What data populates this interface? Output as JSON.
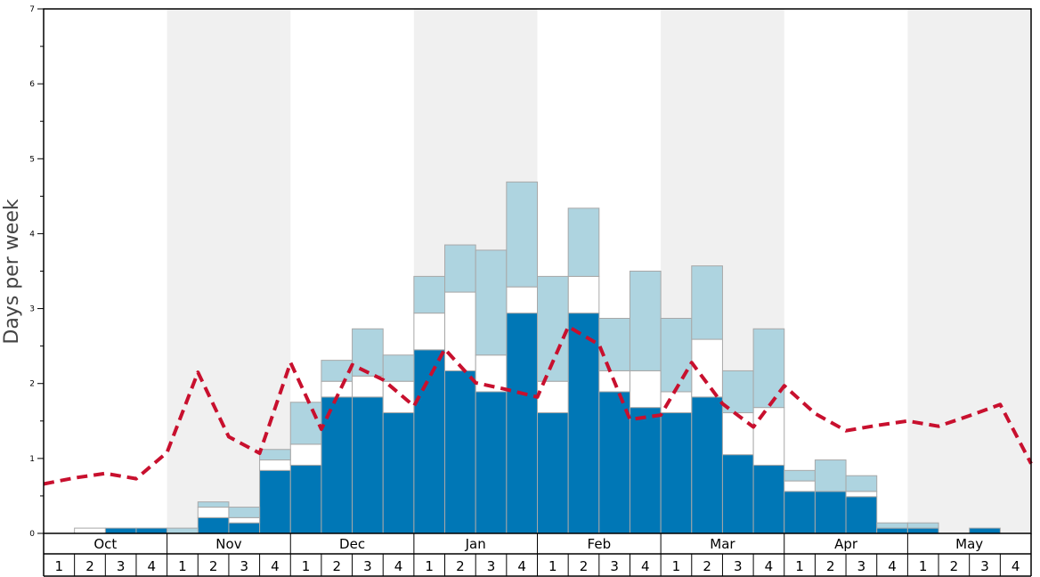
{
  "chart_data": {
    "type": "bar",
    "ylabel": "Days per week",
    "ylim": [
      0,
      7
    ],
    "y_ticks": [
      "0",
      "1",
      "2",
      "3",
      "4",
      "5",
      "6",
      "7"
    ],
    "months": [
      "Oct",
      "Nov",
      "Dec",
      "Jan",
      "Feb",
      "Mar",
      "Apr",
      "May"
    ],
    "week_labels": [
      "1",
      "2",
      "3",
      "4"
    ],
    "stacked": true,
    "series": [
      {
        "key": "dark",
        "color": "#0077b6",
        "values": [
          0,
          0,
          0.07,
          0.07,
          0,
          0.21,
          0.14,
          0.84,
          0.91,
          1.82,
          1.82,
          1.61,
          2.45,
          2.17,
          1.89,
          2.94,
          1.61,
          2.94,
          1.89,
          1.68,
          1.61,
          1.82,
          1.05,
          0.91,
          0.56,
          0.56,
          0.49,
          0.07,
          0.07,
          0,
          0.07,
          0
        ]
      },
      {
        "key": "white",
        "color": "#ffffff",
        "values": [
          0,
          0.07,
          0,
          0,
          0,
          0.14,
          0.07,
          0.14,
          0.28,
          0.21,
          0.28,
          0.42,
          0.49,
          1.05,
          0.49,
          0.35,
          0.42,
          0.49,
          0.28,
          0.49,
          0.28,
          0.77,
          0.56,
          0.77,
          0.14,
          0,
          0.07,
          0,
          0,
          0,
          0,
          0
        ]
      },
      {
        "key": "light",
        "color": "#aed4e0",
        "values": [
          0,
          0,
          0,
          0,
          0.07,
          0.07,
          0.14,
          0.14,
          0.56,
          0.28,
          0.63,
          0.35,
          0.49,
          0.63,
          1.4,
          1.4,
          1.4,
          0.91,
          0.7,
          1.33,
          0.98,
          0.98,
          0.56,
          1.05,
          0.14,
          0.42,
          0.21,
          0.07,
          0.07,
          0,
          0,
          0
        ]
      }
    ],
    "line": {
      "color": "#c8102e",
      "style": "dashed",
      "values": [
        0.66,
        0.74,
        0.8,
        0.73,
        1.08,
        2.15,
        1.29,
        1.07,
        2.28,
        1.39,
        2.25,
        2.05,
        1.7,
        2.46,
        2.01,
        1.92,
        1.82,
        2.76,
        2.52,
        1.52,
        1.58,
        2.28,
        1.73,
        1.42,
        1.97,
        1.6,
        1.37,
        1.44,
        1.5,
        1.43,
        1.57,
        1.72,
        0.93
      ]
    },
    "shaded_months": [
      "Nov",
      "Jan",
      "Mar",
      "May"
    ],
    "shade_color": "#f0f0f0",
    "grid": false,
    "legend": "none"
  }
}
